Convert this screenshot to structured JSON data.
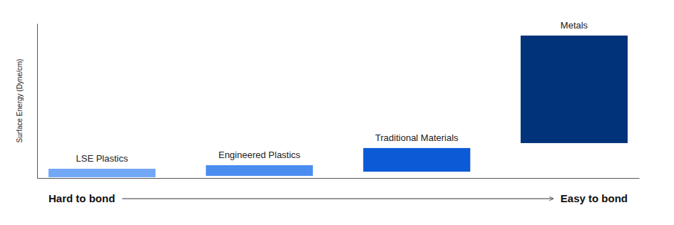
{
  "chart_data": {
    "type": "bar",
    "y_label": "Surface Energy (Dyne/cm)",
    "categories": [
      "LSE Plastics",
      "Engineered Plastics",
      "Traditional Materials",
      "Metals"
    ],
    "values": [
      [
        0.5,
        6
      ],
      [
        1.4,
        8.3
      ],
      [
        4.1,
        19.4
      ],
      [
        22.6,
        92.2
      ]
    ],
    "colors": [
      "#72a8f6",
      "#4b8cf0",
      "#0b5ad6",
      "#00337a"
    ],
    "ylim": [
      0,
      100
    ],
    "tick_labels": false,
    "annotations": [
      "Hard to bond",
      "Easy to bond"
    ]
  }
}
